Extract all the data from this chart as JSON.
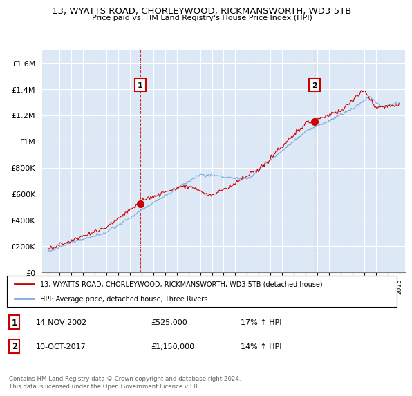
{
  "title": "13, WYATTS ROAD, CHORLEYWOOD, RICKMANSWORTH, WD3 5TB",
  "subtitle": "Price paid vs. HM Land Registry's House Price Index (HPI)",
  "legend_line1": "13, WYATTS ROAD, CHORLEYWOOD, RICKMANSWORTH, WD3 5TB (detached house)",
  "legend_line2": "HPI: Average price, detached house, Three Rivers",
  "sale1_date": "14-NOV-2002",
  "sale1_price": "£525,000",
  "sale1_hpi": "17% ↑ HPI",
  "sale2_date": "10-OCT-2017",
  "sale2_price": "£1,150,000",
  "sale2_hpi": "14% ↑ HPI",
  "footnote": "Contains HM Land Registry data © Crown copyright and database right 2024.\nThis data is licensed under the Open Government Licence v3.0.",
  "hpi_color": "#7aaadd",
  "price_color": "#cc0000",
  "marker_color": "#cc0000",
  "vline_color": "#cc0000",
  "bg_color": "#dce8f5",
  "ylim": [
    0,
    1700000
  ],
  "yticks": [
    0,
    200000,
    400000,
    600000,
    800000,
    1000000,
    1200000,
    1400000,
    1600000
  ],
  "ytick_labels": [
    "£0",
    "£200K",
    "£400K",
    "£600K",
    "£800K",
    "£1M",
    "£1.2M",
    "£1.4M",
    "£1.6M"
  ],
  "sale1_year": 2002.87,
  "sale1_value": 525000,
  "sale2_year": 2017.77,
  "sale2_value": 1150000,
  "xmin": 1994.5,
  "xmax": 2025.5
}
